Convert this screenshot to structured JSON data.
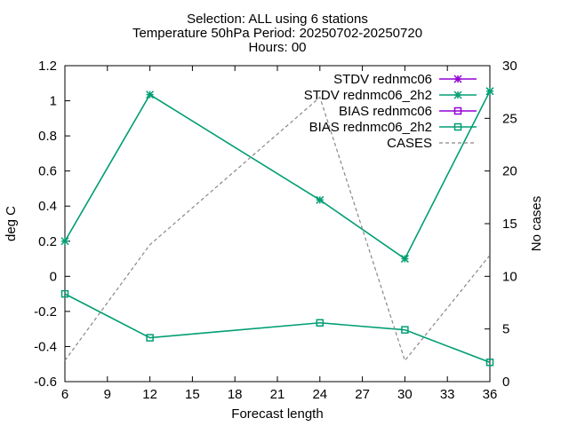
{
  "title_lines": [
    "Selection: ALL using     6 stations",
    "Temperature 50hPa   Period: 20250702-20250720",
    "Hours: 00"
  ],
  "chart_data": {
    "type": "line",
    "xlabel": "Forecast length",
    "ylabel": "deg C",
    "y2label": "No cases",
    "xlim": [
      6,
      36
    ],
    "ylim": [
      -0.6,
      1.2
    ],
    "y2lim": [
      0,
      30
    ],
    "xticks": [
      "6",
      "9",
      "12",
      "15",
      "18",
      "21",
      "24",
      "27",
      "30",
      "33",
      "36"
    ],
    "yticks": [
      "-0.6",
      "-0.4",
      "-0.2",
      "0",
      "0.2",
      "0.4",
      "0.6",
      "0.8",
      "1",
      "1.2"
    ],
    "y2ticks": [
      "0",
      "5",
      "10",
      "15",
      "20",
      "25",
      "30"
    ],
    "legend_position": "top-right",
    "grid": false,
    "series": [
      {
        "name": "STDV rednmc06",
        "axis": "y1",
        "color": "#9400d3",
        "marker": "star",
        "x": [],
        "y": []
      },
      {
        "name": "STDV rednmc06_2h2",
        "axis": "y1",
        "color": "#009e73",
        "marker": "star",
        "x": [
          6,
          12,
          24,
          30,
          36
        ],
        "y": [
          0.2,
          1.035,
          0.435,
          0.1,
          1.055
        ]
      },
      {
        "name": "BIAS rednmc06",
        "axis": "y1",
        "color": "#9400d3",
        "marker": "square",
        "x": [],
        "y": []
      },
      {
        "name": "BIAS rednmc06_2h2",
        "axis": "y1",
        "color": "#009e73",
        "marker": "square",
        "x": [
          6,
          12,
          24,
          30,
          36
        ],
        "y": [
          -0.1,
          -0.35,
          -0.265,
          -0.305,
          -0.49
        ]
      },
      {
        "name": "CASES",
        "axis": "y2",
        "color": "#888888",
        "dashed": true,
        "x": [
          6,
          12,
          24,
          30,
          36
        ],
        "y": [
          2,
          13,
          27,
          2,
          12
        ]
      }
    ]
  }
}
